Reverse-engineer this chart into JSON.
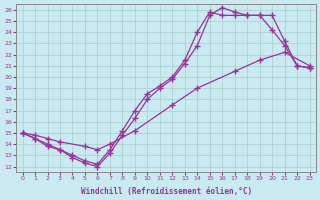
{
  "background_color": "#c8eaf0",
  "line_color": "#993399",
  "grid_color": "#aacccc",
  "xlabel": "Windchill (Refroidissement éolien,°C)",
  "xlim": [
    -0.5,
    23.5
  ],
  "ylim": [
    11.5,
    26.5
  ],
  "xticks": [
    0,
    1,
    2,
    3,
    4,
    5,
    6,
    7,
    8,
    9,
    10,
    11,
    12,
    13,
    14,
    15,
    16,
    17,
    18,
    19,
    20,
    21,
    22,
    23
  ],
  "yticks": [
    12,
    13,
    14,
    15,
    16,
    17,
    18,
    19,
    20,
    21,
    22,
    23,
    24,
    25,
    26
  ],
  "line1_x": [
    0,
    1,
    2,
    3,
    4,
    5,
    6,
    7,
    8,
    9,
    10,
    11,
    12,
    13,
    14,
    15,
    16,
    17,
    18,
    19,
    20,
    21,
    22,
    23
  ],
  "line1_y": [
    15.0,
    14.5,
    13.8,
    13.5,
    12.8,
    12.3,
    12.0,
    13.2,
    14.8,
    16.3,
    18.0,
    19.0,
    19.8,
    21.2,
    22.8,
    25.5,
    26.2,
    25.8,
    25.5,
    25.5,
    25.5,
    23.2,
    21.0,
    20.8
  ],
  "line2_x": [
    0,
    1,
    2,
    3,
    4,
    5,
    6,
    7,
    8,
    9,
    10,
    11,
    12,
    13,
    14,
    15,
    16,
    17,
    18,
    19,
    20,
    21,
    22,
    23
  ],
  "line2_y": [
    15.0,
    14.5,
    14.0,
    13.5,
    13.0,
    12.5,
    12.2,
    13.5,
    15.2,
    17.0,
    18.5,
    19.2,
    20.0,
    21.5,
    24.0,
    25.8,
    25.5,
    25.5,
    25.5,
    25.5,
    24.2,
    22.8,
    21.0,
    20.8
  ],
  "line3_x": [
    0,
    1,
    2,
    3,
    5,
    6,
    7,
    9,
    12,
    14,
    17,
    19,
    21,
    23
  ],
  "line3_y": [
    15.0,
    14.8,
    14.5,
    14.2,
    13.8,
    13.5,
    14.0,
    15.2,
    17.5,
    19.0,
    20.5,
    21.5,
    22.2,
    21.0
  ],
  "marker": "+",
  "markersize": 4,
  "linewidth": 0.9
}
